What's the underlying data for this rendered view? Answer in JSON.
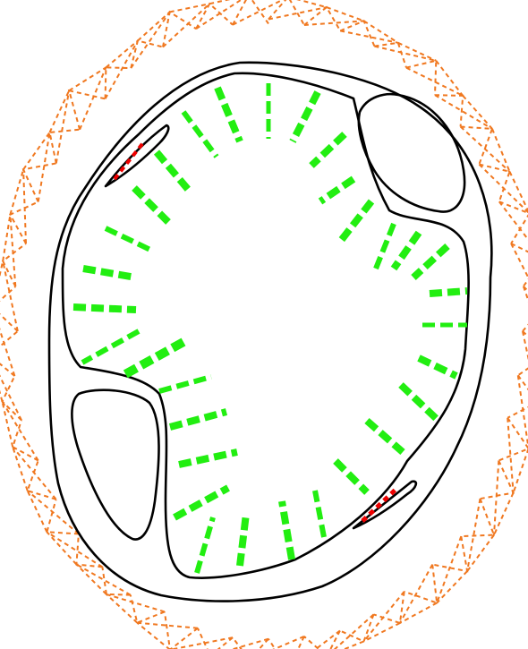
{
  "diagram": {
    "colors": {
      "background": "#ffffff",
      "outline": "#000000",
      "outer_mesh": "#f07820",
      "radial_segments": "#22ee11",
      "slit_markers": "#ee0000"
    },
    "components": [
      "outer-mesh",
      "outer-boundary",
      "inner-boundary",
      "upper-right-lobe",
      "lower-left-lobe",
      "upper-left-slit",
      "lower-right-slit",
      "radial-segments"
    ]
  }
}
